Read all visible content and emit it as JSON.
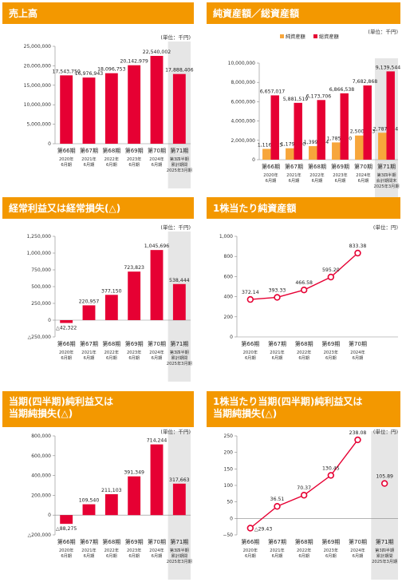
{
  "colors": {
    "header": "#f39800",
    "bar": "#e60033",
    "bar2": "#f7a63b",
    "line": "#e60033",
    "shade": "#e6e6e6",
    "axis": "#888888"
  },
  "panels": [
    {
      "id": "p1",
      "title": "売上高",
      "unit": "(単位：千円)",
      "chart_data": {
        "type": "bar",
        "ylim": [
          0,
          25000000
        ],
        "yticks": [
          0,
          5000000,
          10000000,
          15000000,
          20000000,
          25000000
        ],
        "ytick_labels": [
          "0",
          "5,000,000",
          "10,000,000",
          "15,000,000",
          "20,000,000",
          "25,000,000"
        ],
        "categories": [
          [
            "第66期",
            "2020年",
            "6月期"
          ],
          [
            "第67期",
            "2021年",
            "6月期"
          ],
          [
            "第68期",
            "2022年",
            "6月期"
          ],
          [
            "第69期",
            "2023年",
            "6月期"
          ],
          [
            "第70期",
            "2024年",
            "6月期"
          ],
          [
            "第71期",
            "第3四半期",
            "累計期間",
            "2025年3月期"
          ]
        ],
        "highlight_last": true,
        "series": [
          {
            "values": [
              17543750,
              16976943,
              18096753,
              20142979,
              22540002,
              17888406
            ],
            "labels": [
              "17,543,750",
              "16,976,943",
              "18,096,753",
              "20,142,979",
              "22,540,002",
              "17,888,406"
            ]
          }
        ]
      }
    },
    {
      "id": "p2",
      "title": "純資産額／総資産額",
      "unit": "(単位：千円)",
      "chart_data": {
        "type": "bar",
        "ylim": [
          0,
          10000000
        ],
        "yticks": [
          0,
          2000000,
          4000000,
          6000000,
          8000000,
          10000000
        ],
        "ytick_labels": [
          "0",
          "2,000,000",
          "4,000,000",
          "6,000,000",
          "8,000,000",
          "10,000,000"
        ],
        "legend": [
          "純資産額",
          "総資産額"
        ],
        "categories": [
          [
            "第66期",
            "2020年",
            "6月期"
          ],
          [
            "第67期",
            "2021年",
            "6月期"
          ],
          [
            "第68期",
            "2022年",
            "6月期"
          ],
          [
            "第69期",
            "2023年",
            "6月期"
          ],
          [
            "第70期",
            "2024年",
            "6月期"
          ],
          [
            "第71期",
            "第3四半期",
            "会計期間末",
            "2025年3月期"
          ]
        ],
        "highlight_last": true,
        "series": [
          {
            "name": "純資産額",
            "values": [
              1116415,
              1179990,
              1399734,
              1785610,
              2500133,
              2787654
            ],
            "labels": [
              "1,116,415",
              "1,179,990",
              "1,399,734",
              "1,785,610",
              "2,500,133",
              "2,787,654"
            ]
          },
          {
            "name": "総資産額",
            "values": [
              6657017,
              5881519,
              6173706,
              6866538,
              7682868,
              9139544
            ],
            "labels": [
              "6,657,017",
              "5,881,519",
              "6,173,706",
              "6,866,538",
              "7,682,868",
              "9,139,544"
            ]
          }
        ]
      }
    },
    {
      "id": "p3",
      "title": "経常利益又は経常損失(△)",
      "unit": "(単位：千円)",
      "chart_data": {
        "type": "bar",
        "ylim": [
          -250000,
          1250000
        ],
        "yticks": [
          -250000,
          0,
          250000,
          500000,
          750000,
          1000000,
          1250000
        ],
        "ytick_labels": [
          "△250,000",
          "0",
          "250,000",
          "500,000",
          "750,000",
          "1,000,000",
          "1,250,000"
        ],
        "categories": [
          [
            "第66期",
            "2020年",
            "6月期"
          ],
          [
            "第67期",
            "2021年",
            "6月期"
          ],
          [
            "第68期",
            "2022年",
            "6月期"
          ],
          [
            "第69期",
            "2023年",
            "6月期"
          ],
          [
            "第70期",
            "2024年",
            "6月期"
          ],
          [
            "第71期",
            "第3四半期",
            "累計期間",
            "2025年3月期"
          ]
        ],
        "highlight_last": true,
        "series": [
          {
            "values": [
              -42322,
              220957,
              377150,
              723823,
              1045696,
              538444
            ],
            "labels": [
              "△42,322",
              "220,957",
              "377,150",
              "723,823",
              "1,045,696",
              "538,444"
            ]
          }
        ]
      }
    },
    {
      "id": "p4",
      "title": "1株当たり純資産額",
      "unit": "(単位：円)",
      "chart_data": {
        "type": "line",
        "ylim": [
          0,
          1000
        ],
        "yticks": [
          0,
          200,
          400,
          600,
          800,
          1000
        ],
        "ytick_labels": [
          "0",
          "200",
          "400",
          "600",
          "800",
          "1,000"
        ],
        "categories": [
          [
            "第66期",
            "2020年",
            "6月期"
          ],
          [
            "第67期",
            "2021年",
            "6月期"
          ],
          [
            "第68期",
            "2022年",
            "6月期"
          ],
          [
            "第69期",
            "2023年",
            "6月期"
          ],
          [
            "第70期",
            "2024年",
            "6月期"
          ]
        ],
        "slots": 6,
        "highlight_last": false,
        "series": [
          {
            "values": [
              372.14,
              393.33,
              466.58,
              595.2,
              833.38
            ],
            "labels": [
              "372.14",
              "393.33",
              "466.58",
              "595.20",
              "833.38"
            ]
          }
        ]
      }
    },
    {
      "id": "p5",
      "title": "当期(四半期)純利益又は\n当期純損失(△)",
      "unit": "(単位：千円)",
      "chart_data": {
        "type": "bar",
        "ylim": [
          -200000,
          800000
        ],
        "yticks": [
          -200000,
          0,
          200000,
          400000,
          600000,
          800000
        ],
        "ytick_labels": [
          "△200,000",
          "0",
          "200,000",
          "400,000",
          "600,000",
          "800,000"
        ],
        "categories": [
          [
            "第66期",
            "2020年",
            "6月期"
          ],
          [
            "第67期",
            "2021年",
            "6月期"
          ],
          [
            "第68期",
            "2022年",
            "6月期"
          ],
          [
            "第69期",
            "2023年",
            "6月期"
          ],
          [
            "第70期",
            "2024年",
            "6月期"
          ],
          [
            "第71期",
            "第3四半期",
            "累計期間",
            "2025年3月期"
          ]
        ],
        "highlight_last": true,
        "series": [
          {
            "values": [
              -88275,
              109540,
              211103,
              391349,
              714244,
              317663
            ],
            "labels": [
              "△88,275",
              "109,540",
              "211,103",
              "391,349",
              "714,244",
              "317,663"
            ]
          }
        ]
      }
    },
    {
      "id": "p6",
      "title": "1株当たり当期(四半期)純利益又は\n当期純損失(△)",
      "unit": "(単位：円)",
      "chart_data": {
        "type": "line",
        "ylim": [
          -50,
          250
        ],
        "yticks": [
          -50,
          0,
          50,
          100,
          150,
          200,
          250
        ],
        "ytick_labels": [
          "−50",
          "0",
          "50",
          "100",
          "150",
          "200",
          "250"
        ],
        "categories": [
          [
            "第66期",
            "2020年",
            "6月期"
          ],
          [
            "第67期",
            "2021年",
            "6月期"
          ],
          [
            "第68期",
            "2022年",
            "6月期"
          ],
          [
            "第69期",
            "2023年",
            "6月期"
          ],
          [
            "第70期",
            "2024年",
            "6月期"
          ],
          [
            "第71期",
            "第3四半期",
            "累計期間",
            "2025年3月期"
          ]
        ],
        "highlight_last": true,
        "connected_points": 5,
        "series": [
          {
            "values": [
              -29.43,
              36.51,
              70.37,
              130.45,
              238.08,
              105.89
            ],
            "labels": [
              "△29.43",
              "36.51",
              "70.37",
              "130.45",
              "238.08",
              "105.89"
            ]
          }
        ]
      }
    }
  ]
}
